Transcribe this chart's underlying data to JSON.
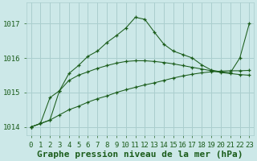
{
  "xlabel": "Graphe pression niveau de la mer (hPa)",
  "bg_color": "#cce8e8",
  "grid_color": "#aacece",
  "line_color": "#1a5c1a",
  "x_ticks": [
    0,
    1,
    2,
    3,
    4,
    5,
    6,
    7,
    8,
    9,
    10,
    11,
    12,
    13,
    14,
    15,
    16,
    17,
    18,
    19,
    20,
    21,
    22,
    23
  ],
  "ylim": [
    1013.75,
    1017.6
  ],
  "yticks": [
    1014,
    1015,
    1016,
    1017
  ],
  "line1": [
    1014.0,
    1014.1,
    1014.2,
    1014.35,
    1014.5,
    1014.6,
    1014.72,
    1014.82,
    1014.9,
    1015.0,
    1015.08,
    1015.15,
    1015.22,
    1015.28,
    1015.35,
    1015.42,
    1015.48,
    1015.53,
    1015.57,
    1015.6,
    1015.62,
    1015.63,
    1015.63,
    1015.64
  ],
  "line2": [
    1014.0,
    1014.1,
    1014.2,
    1015.05,
    1015.35,
    1015.5,
    1015.6,
    1015.7,
    1015.78,
    1015.85,
    1015.9,
    1015.92,
    1015.92,
    1015.9,
    1015.87,
    1015.83,
    1015.78,
    1015.73,
    1015.68,
    1015.63,
    1015.58,
    1015.55,
    1015.52,
    1015.5
  ],
  "line3": [
    1014.0,
    1014.1,
    1014.85,
    1015.05,
    1015.55,
    1015.78,
    1016.05,
    1016.2,
    1016.45,
    1016.65,
    1016.87,
    1017.18,
    1017.12,
    1016.75,
    1016.4,
    1016.2,
    1016.1,
    1016.0,
    1015.8,
    1015.65,
    1015.6,
    1015.57,
    1016.0,
    1017.0
  ],
  "xlabel_fontsize": 8,
  "tick_fontsize": 6.5,
  "tick_label_color": "#1a5c1a",
  "xlabel_bold": true
}
